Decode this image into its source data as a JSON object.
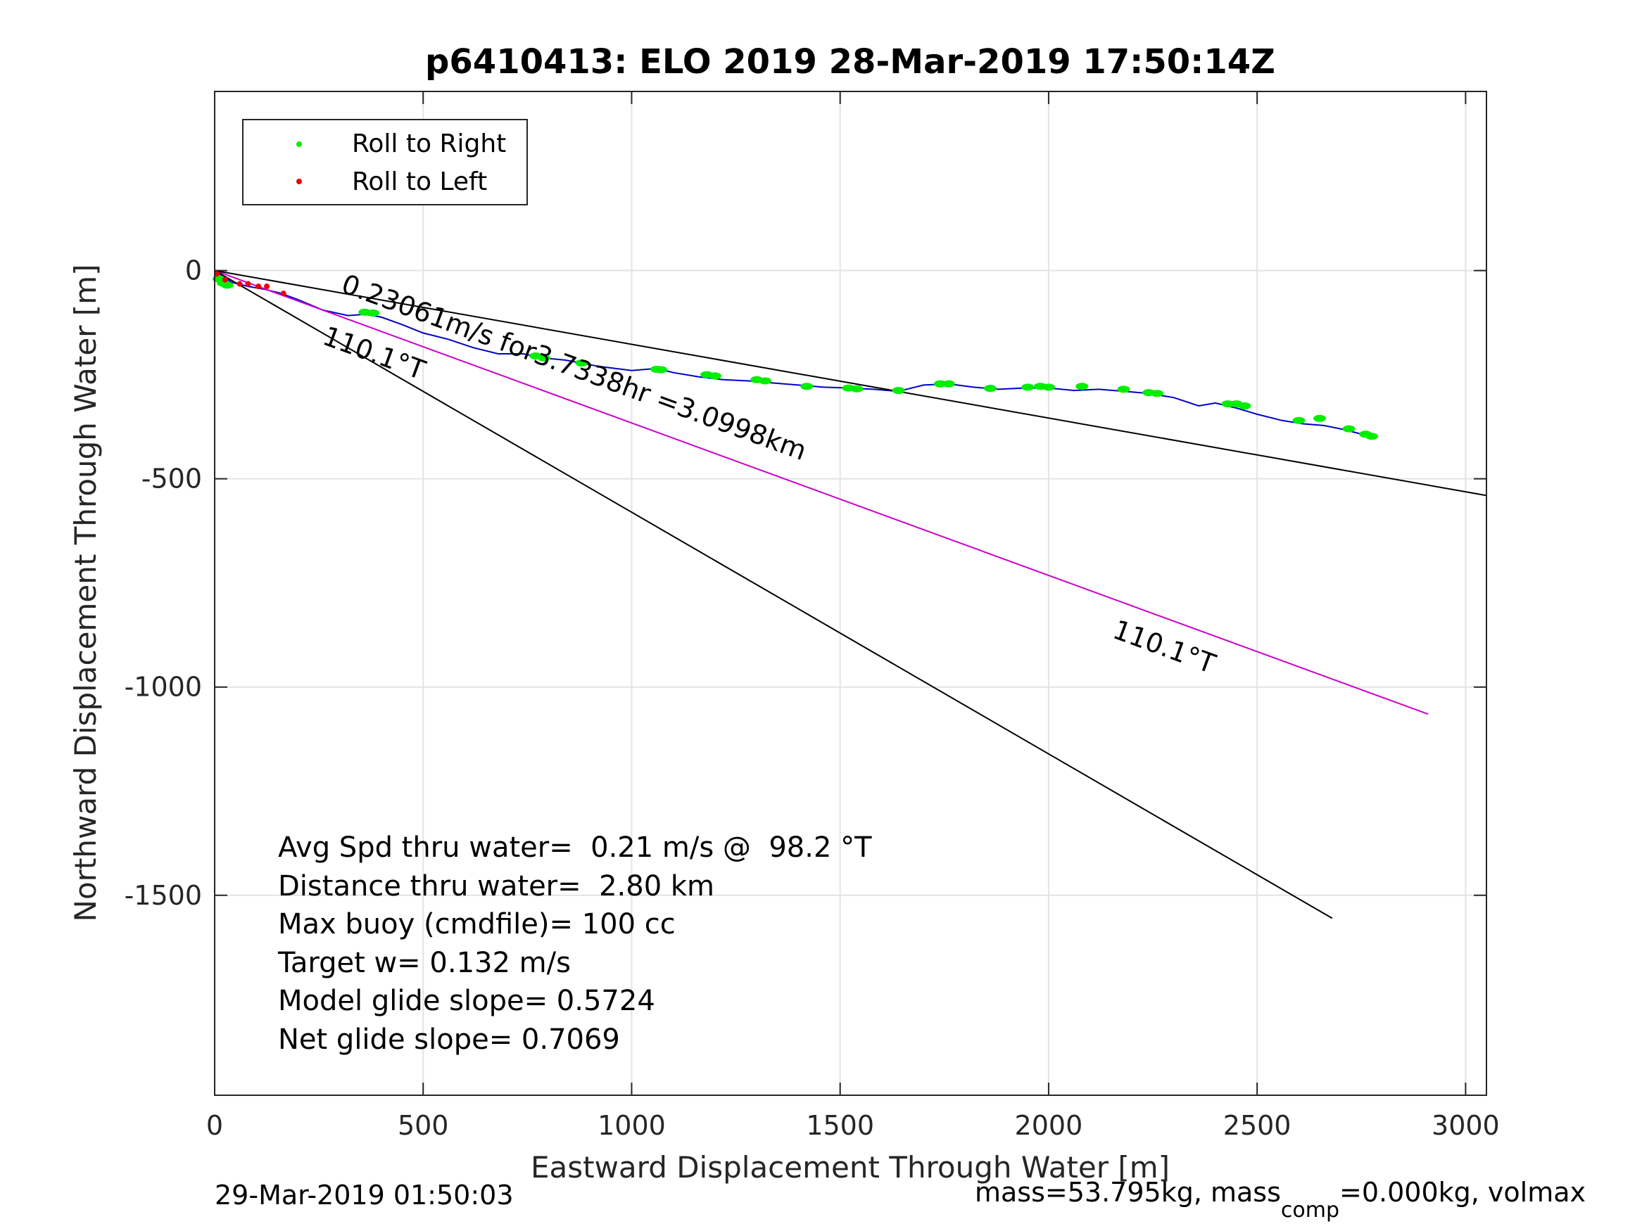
{
  "chart_data": {
    "type": "line",
    "title": "p6410413: ELO 2019 28-Mar-2019 17:50:14Z",
    "xlabel": "Eastward Displacement Through Water [m]",
    "ylabel": "Northward Displacement Through Water [m]",
    "xlim": [
      0,
      3050
    ],
    "ylim": [
      -1980,
      430
    ],
    "xticks": [
      0,
      500,
      1000,
      1500,
      2000,
      2500,
      3000
    ],
    "yticks": [
      0,
      -500,
      -1000,
      -1500
    ],
    "grid": true,
    "legend": {
      "placement": "top-left",
      "entries": [
        {
          "label": "Roll to Right",
          "color": "#00ee00"
        },
        {
          "label": "Roll to Left",
          "color": "#ee0000"
        }
      ]
    },
    "colors": {
      "track": "#0000cc",
      "heading_line": "#cc00cc",
      "envelope": "#000000",
      "roll_right": "#00ee00",
      "roll_left": "#ee0000"
    },
    "series": [
      {
        "color_key": "track",
        "x": [
          0,
          40,
          80,
          120,
          160,
          200,
          260,
          320,
          360,
          400,
          450,
          500,
          560,
          620,
          680,
          740,
          790,
          840,
          880,
          920,
          960,
          1000,
          1060,
          1100,
          1160,
          1220,
          1280,
          1340,
          1400,
          1460,
          1520,
          1580,
          1640,
          1700,
          1760,
          1820,
          1880,
          1940,
          2000,
          2060,
          2120,
          2180,
          2240,
          2300,
          2360,
          2400,
          2450,
          2500,
          2560,
          2610,
          2660,
          2700,
          2740,
          2775
        ],
        "y": [
          0,
          -28,
          -38,
          -45,
          -55,
          -70,
          -95,
          -108,
          -105,
          -112,
          -130,
          -150,
          -165,
          -185,
          -200,
          -200,
          -210,
          -215,
          -222,
          -230,
          -235,
          -240,
          -235,
          -245,
          -255,
          -262,
          -265,
          -270,
          -275,
          -280,
          -282,
          -285,
          -290,
          -275,
          -272,
          -280,
          -285,
          -282,
          -282,
          -288,
          -285,
          -290,
          -295,
          -305,
          -325,
          -318,
          -330,
          -345,
          -360,
          -368,
          -372,
          -380,
          -390,
          -400
        ]
      },
      {
        "color_key": "heading_line",
        "x": [
          0,
          2910
        ],
        "y": [
          0,
          -1065
        ]
      },
      {
        "color_key": "envelope",
        "x": [
          0,
          3050
        ],
        "y": [
          0,
          -540
        ]
      },
      {
        "color_key": "envelope",
        "x": [
          0,
          2680
        ],
        "y": [
          0,
          -1555
        ]
      }
    ],
    "roll_right": {
      "x": [
        10,
        20,
        30,
        360,
        380,
        770,
        790,
        880,
        1060,
        1070,
        1180,
        1200,
        1300,
        1320,
        1420,
        1520,
        1540,
        1640,
        1740,
        1760,
        1860,
        1950,
        1980,
        2000,
        2080,
        2180,
        2240,
        2260,
        2430,
        2450,
        2470,
        2600,
        2650,
        2720,
        2760,
        2775
      ],
      "y": [
        -20,
        -30,
        -35,
        -100,
        -102,
        -205,
        -210,
        -222,
        -237,
        -238,
        -250,
        -253,
        -262,
        -265,
        -278,
        -282,
        -284,
        -288,
        -272,
        -272,
        -283,
        -280,
        -278,
        -280,
        -278,
        -285,
        -293,
        -295,
        -320,
        -320,
        -325,
        -360,
        -355,
        -380,
        -393,
        -398
      ]
    },
    "roll_left": {
      "x": [
        5,
        25,
        60,
        80,
        105,
        125,
        165
      ],
      "y": [
        -8,
        -22,
        -32,
        -32,
        -38,
        -38,
        -55
      ]
    },
    "annotations": [
      {
        "text": "0.23061m/s for3.7338hr =3.0998km",
        "x": 300,
        "y": -50,
        "rotation_deg": 20.1
      },
      {
        "text": "110.1°T",
        "x": 255,
        "y": -175,
        "rotation_deg": 20.1
      },
      {
        "text": "110.1°T",
        "x": 2150,
        "y": -880,
        "rotation_deg": 20.1
      }
    ],
    "stats": [
      "Avg Spd thru water=  0.21 m/s @  98.2 °T",
      "Distance thru water=  2.80 km",
      "Max buoy (cmdfile)= 100 cc",
      "Target w= 0.132 m/s",
      "Model glide slope= 0.5724",
      "Net glide slope= 0.7069"
    ],
    "footer_left": "29-Mar-2019 01:50:03",
    "footer_right": {
      "part1": "mass=53.795kg, mass",
      "sub": "comp",
      "part2": "=0.000kg, volmax"
    }
  }
}
